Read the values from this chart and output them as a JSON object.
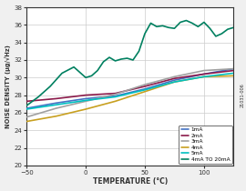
{
  "xlabel": "TEMPERATURE (°C)",
  "ylabel": "NOISE DENSITY (μg/√Hz)",
  "xlim": [
    -50,
    125
  ],
  "ylim": [
    20,
    38
  ],
  "xticks": [
    -50,
    0,
    50,
    100
  ],
  "yticks": [
    20,
    22,
    24,
    26,
    28,
    30,
    32,
    34,
    36,
    38
  ],
  "series": {
    "1mA": {
      "color": "#4472C4",
      "lw": 1.2,
      "x": [
        -50,
        -25,
        0,
        25,
        50,
        75,
        100,
        125
      ],
      "y": [
        26.5,
        27.1,
        27.6,
        27.9,
        28.7,
        29.7,
        30.4,
        31.0
      ]
    },
    "2mA": {
      "color": "#8B1A4A",
      "lw": 1.2,
      "x": [
        -50,
        -25,
        0,
        25,
        50,
        75,
        100,
        125
      ],
      "y": [
        27.3,
        27.6,
        28.0,
        28.2,
        29.0,
        29.9,
        30.4,
        30.8
      ]
    },
    "3mA": {
      "color": "#A0A0A0",
      "lw": 1.2,
      "x": [
        -50,
        -25,
        0,
        25,
        50,
        75,
        100,
        125
      ],
      "y": [
        25.5,
        26.5,
        27.3,
        28.1,
        29.2,
        30.1,
        30.8,
        31.0
      ]
    },
    "4mA": {
      "color": "#C8A020",
      "lw": 1.2,
      "x": [
        -50,
        -25,
        0,
        25,
        50,
        75,
        100,
        125
      ],
      "y": [
        25.0,
        25.6,
        26.4,
        27.3,
        28.4,
        29.5,
        30.1,
        30.2
      ]
    },
    "5mA": {
      "color": "#00C0C0",
      "lw": 1.2,
      "x": [
        -50,
        -25,
        0,
        25,
        50,
        75,
        100,
        125
      ],
      "y": [
        26.4,
        26.9,
        27.4,
        27.8,
        28.6,
        29.5,
        30.1,
        30.5
      ]
    },
    "4mA TO 20mA": {
      "color": "#008060",
      "lw": 1.2,
      "x": [
        -50,
        -40,
        -30,
        -20,
        -10,
        0,
        5,
        10,
        15,
        20,
        25,
        30,
        35,
        40,
        45,
        50,
        55,
        60,
        65,
        70,
        75,
        80,
        85,
        90,
        95,
        100,
        105,
        110,
        115,
        120,
        125
      ],
      "y": [
        26.8,
        27.8,
        29.0,
        30.5,
        31.2,
        30.0,
        30.2,
        30.8,
        31.8,
        32.3,
        31.9,
        32.1,
        32.2,
        32.0,
        33.0,
        35.0,
        36.2,
        35.8,
        35.9,
        35.7,
        35.6,
        36.3,
        36.5,
        36.2,
        35.8,
        36.3,
        35.6,
        34.7,
        35.0,
        35.5,
        35.7
      ]
    }
  },
  "legend_order": [
    "1mA",
    "2mA",
    "3mA",
    "4mA",
    "5mA",
    "4mA TO 20mA"
  ],
  "watermark": "21031-006",
  "bg_color": "#f0f0f0",
  "plot_bg": "#ffffff"
}
